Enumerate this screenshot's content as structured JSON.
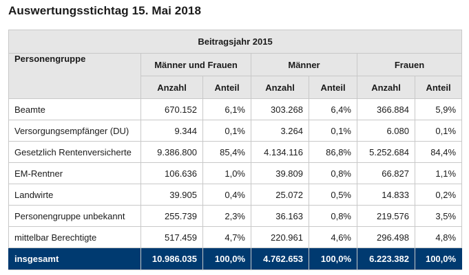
{
  "title": "Auswertungsstichtag 15. Mai 2018",
  "table": {
    "year_header": "Beitragsjahr 2015",
    "group_header": "Personengruppe",
    "groups": [
      "Männer und Frauen",
      "Männer",
      "Frauen"
    ],
    "sub_headers": [
      "Anzahl",
      "Anteil",
      "Anzahl",
      "Anteil",
      "Anzahl",
      "Anteil"
    ],
    "rows": [
      {
        "label": "Beamte",
        "cells": [
          "670.152",
          "6,1%",
          "303.268",
          "6,4%",
          "366.884",
          "5,9%"
        ]
      },
      {
        "label": "Versorgungsempfänger (DU)",
        "cells": [
          "9.344",
          "0,1%",
          "3.264",
          "0,1%",
          "6.080",
          "0,1%"
        ]
      },
      {
        "label": "Gesetzlich Rentenversicherte",
        "cells": [
          "9.386.800",
          "85,4%",
          "4.134.116",
          "86,8%",
          "5.252.684",
          "84,4%"
        ]
      },
      {
        "label": "EM-Rentner",
        "cells": [
          "106.636",
          "1,0%",
          "39.809",
          "0,8%",
          "66.827",
          "1,1%"
        ]
      },
      {
        "label": "Landwirte",
        "cells": [
          "39.905",
          "0,4%",
          "25.072",
          "0,5%",
          "14.833",
          "0,2%"
        ]
      },
      {
        "label": "Personengruppe unbekannt",
        "cells": [
          "255.739",
          "2,3%",
          "36.163",
          "0,8%",
          "219.576",
          "3,5%"
        ]
      },
      {
        "label": "mittelbar Berechtigte",
        "cells": [
          "517.459",
          "4,7%",
          "220.961",
          "4,6%",
          "296.498",
          "4,8%"
        ]
      }
    ],
    "total": {
      "label": "insgesamt",
      "cells": [
        "10.986.035",
        "100,0%",
        "4.762.653",
        "100,0%",
        "6.223.382",
        "100,0%"
      ]
    }
  },
  "colors": {
    "header_bg": "#e6e6e6",
    "total_bg": "#003a70",
    "border": "#c8c8c8"
  }
}
